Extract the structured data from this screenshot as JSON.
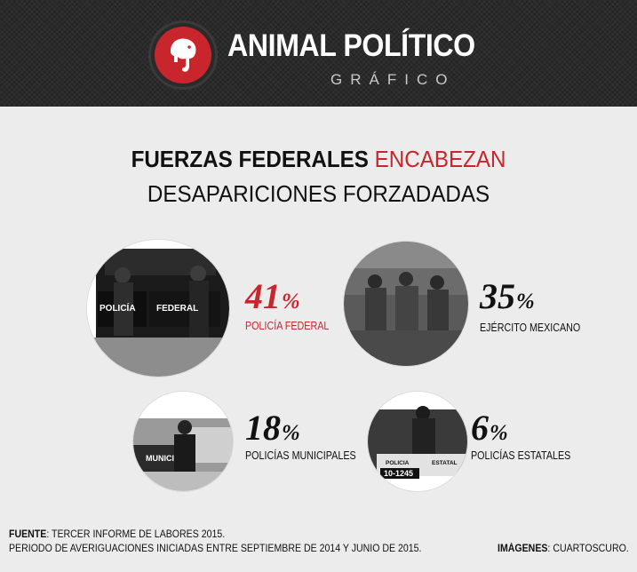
{
  "header": {
    "brand_name": "ANIMAL POLÍTICO",
    "brand_sub": "GRÁFICO",
    "accent_color": "#c8262c",
    "logo_icon": "elephant-logo-icon"
  },
  "title": {
    "line1_bold": "FUERZAS FEDERALES",
    "line1_highlight": "ENCABEZAN",
    "line2": "DESAPARICIONES FORZADADAS"
  },
  "stats": [
    {
      "value": "41",
      "symbol": "%",
      "label": "POLICÍA FEDERAL",
      "highlight": true,
      "photo_text_1": "POLICÍA",
      "photo_text_2": "FEDERAL"
    },
    {
      "value": "35",
      "symbol": "%",
      "label": "EJÉRCITO MEXICANO",
      "highlight": false
    },
    {
      "value": "18",
      "symbol": "%",
      "label": "POLICÍAS MUNICIPALES",
      "highlight": false,
      "photo_text_1": "MUNICI"
    },
    {
      "value": "6",
      "symbol": "%",
      "label": "POLICÍAS ESTATALES",
      "highlight": false,
      "photo_text_1": "POLICIA",
      "photo_text_2": "ESTATAL",
      "photo_text_3": "10-1245"
    }
  ],
  "footer": {
    "source_label": "FUENTE",
    "source_text": ": TERCER INFORME DE LABORES 2015.",
    "period_text": "PERIODO DE AVERIGUACIONES INICIADAS ENTRE SEPTIEMBRE DE 2014 Y JUNIO DE 2015.",
    "images_label": "IMÁGENES",
    "images_text": ": CUARTOSCURO."
  }
}
